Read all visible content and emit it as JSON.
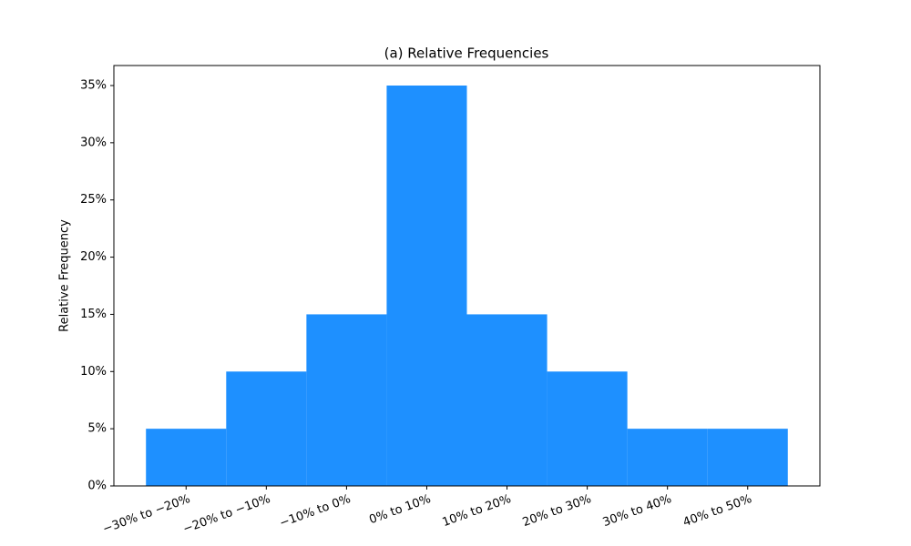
{
  "chart_data": {
    "type": "bar",
    "title": "(a) Relative Frequencies",
    "ylabel": "Relative Frequency",
    "categories": [
      "−30% to −20%",
      "−20% to −10%",
      "−10% to 0%",
      "0% to 10%",
      "10% to 20%",
      "20% to 30%",
      "30% to 40%",
      "40% to 50%"
    ],
    "values": [
      5,
      10,
      15,
      35,
      15,
      10,
      5,
      5
    ],
    "color": "#1e90ff",
    "ylim": [
      0,
      36.75
    ],
    "yticks": [
      {
        "value": 0,
        "label": "0%"
      },
      {
        "value": 5,
        "label": "5%"
      },
      {
        "value": 10,
        "label": "10%"
      },
      {
        "value": 15,
        "label": "15%"
      },
      {
        "value": 20,
        "label": "20%"
      },
      {
        "value": 25,
        "label": "25%"
      },
      {
        "value": 30,
        "label": "30%"
      },
      {
        "value": 35,
        "label": "35%"
      }
    ],
    "grid": false
  }
}
